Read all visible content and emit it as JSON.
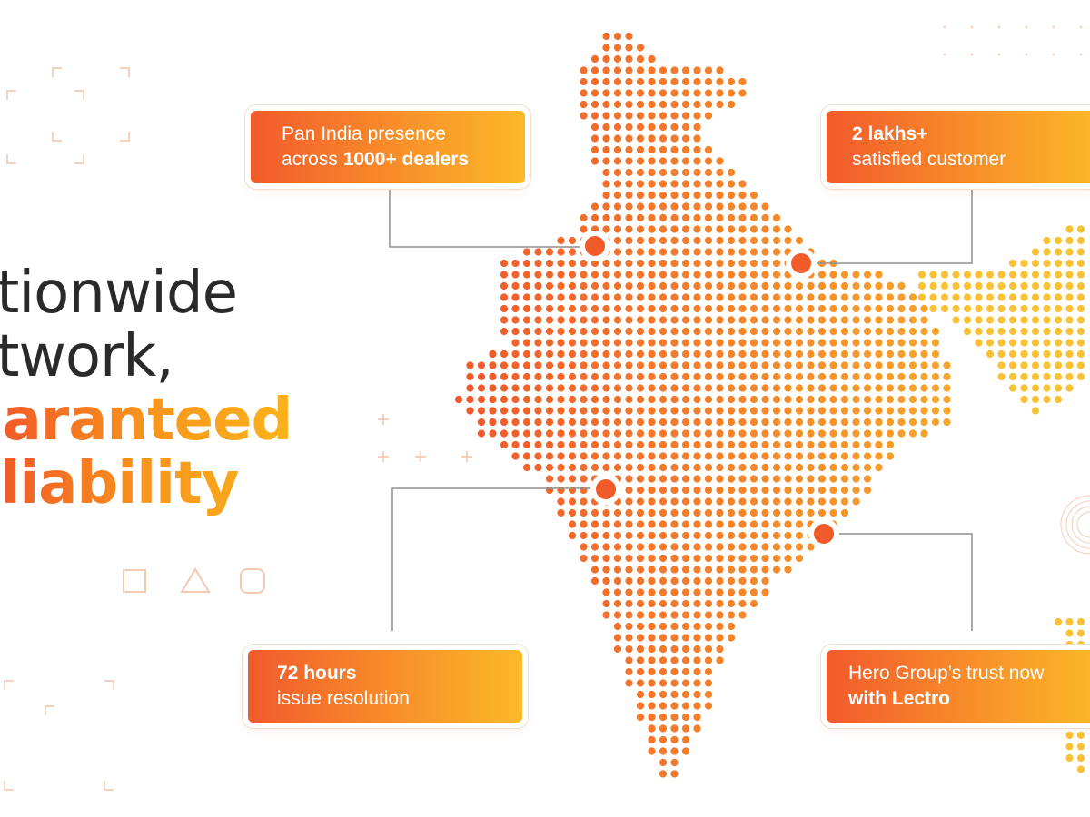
{
  "headline": {
    "line1": "ationwide",
    "line2": "etwork,",
    "line3": "uaranteed",
    "line4": "eliability"
  },
  "cards": [
    {
      "line1": "Pan India presence",
      "line2_prefix": "across ",
      "line2_bold": "1000+ dealers"
    },
    {
      "line1": "2 lakhs+",
      "line2": "satisfied customer"
    },
    {
      "line1": "72 hours",
      "line2": "issue resolution"
    },
    {
      "line1": "Hero Group's trust now",
      "line2": "with Lectro"
    }
  ],
  "colors": {
    "gradient_start": "#f25a2c",
    "gradient_mid": "#f8902a",
    "gradient_end": "#fbb928",
    "headline_dark": "#2a2a2a",
    "marker": "#f15a29",
    "connector": "#8f8f8f",
    "decor": "#f3c9b4"
  },
  "icons": [
    "square-icon",
    "triangle-icon",
    "rounded-square-icon",
    "plus-icon",
    "corner-bracket-icon"
  ]
}
